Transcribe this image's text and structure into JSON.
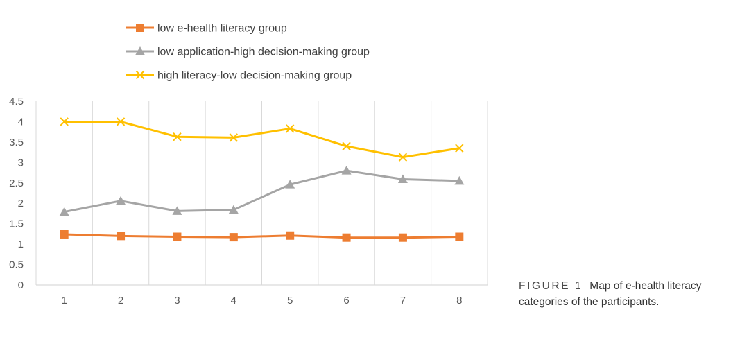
{
  "colors": {
    "low_ehealth": "#ED7D31",
    "low_application": "#A5A5A5",
    "high_literacy": "#FFC000",
    "grid": "#D9D9D9",
    "tick_text": "#595959"
  },
  "chart_data": {
    "type": "line",
    "categories": [
      "1",
      "2",
      "3",
      "4",
      "5",
      "6",
      "7",
      "8"
    ],
    "ylim": [
      0,
      4.5
    ],
    "yticks": [
      "0",
      "0.5",
      "1",
      "1.5",
      "2",
      "2.5",
      "3",
      "3.5",
      "4",
      "4.5"
    ],
    "grid": "vertical",
    "legend_position": "top",
    "series": [
      {
        "name": "low e-health literacy group",
        "marker": "square",
        "color": "#ED7D31",
        "values": [
          1.24,
          1.2,
          1.18,
          1.17,
          1.21,
          1.16,
          1.16,
          1.18
        ]
      },
      {
        "name": "low application-high decision-making group",
        "marker": "triangle",
        "color": "#A5A5A5",
        "values": [
          1.79,
          2.06,
          1.81,
          1.84,
          2.46,
          2.8,
          2.59,
          2.55
        ]
      },
      {
        "name": "high literacy-low decision-making group",
        "marker": "x",
        "color": "#FFC000",
        "values": [
          4.0,
          4.0,
          3.63,
          3.61,
          3.83,
          3.4,
          3.13,
          3.35
        ]
      }
    ]
  },
  "caption": {
    "label": "FIGURE 1",
    "text": "Map of e-health literacy categories of the participants."
  }
}
